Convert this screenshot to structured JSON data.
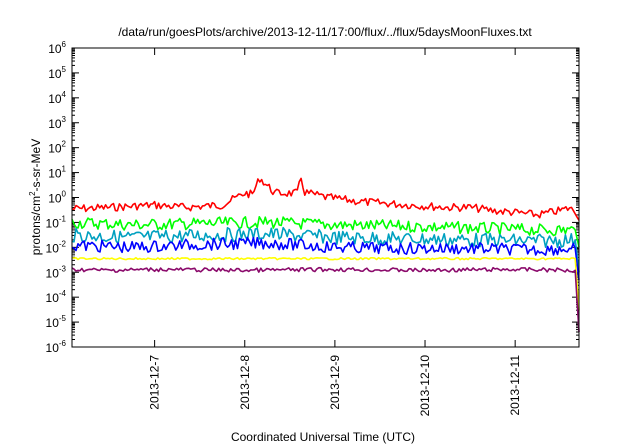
{
  "chart_data": {
    "type": "line",
    "title": "/data/run/goesPlots/archive/2013-12-11/17:00/flux/../flux/5daysMoonFluxes.txt",
    "xlabel": "Coordinated Universal Time (UTC)",
    "ylabel": {
      "base": "protons/cm",
      "sup": "2",
      "rest": "-s-sr-MeV"
    },
    "x_range_days": [
      "2013-12-06 02:00",
      "2013-12-11 17:00"
    ],
    "x_ticks": [
      {
        "label": "2013-12-7",
        "value": "2013-12-07"
      },
      {
        "label": "2013-12-8",
        "value": "2013-12-08"
      },
      {
        "label": "2013-12-9",
        "value": "2013-12-09"
      },
      {
        "label": "2013-12-10",
        "value": "2013-12-10"
      },
      {
        "label": "2013-12-11",
        "value": "2013-12-11"
      }
    ],
    "y_scale": "log",
    "ylim": [
      1e-06,
      1000000.0
    ],
    "y_ticks": [
      {
        "base": "10",
        "exp": "-6",
        "value": 1e-06
      },
      {
        "base": "10",
        "exp": "-5",
        "value": 1e-05
      },
      {
        "base": "10",
        "exp": "-4",
        "value": 0.0001
      },
      {
        "base": "10",
        "exp": "-3",
        "value": 0.001
      },
      {
        "base": "10",
        "exp": "-2",
        "value": 0.01
      },
      {
        "base": "10",
        "exp": "-1",
        "value": 0.1
      },
      {
        "base": "10",
        "exp": "0",
        "value": 1
      },
      {
        "base": "10",
        "exp": "1",
        "value": 10
      },
      {
        "base": "10",
        "exp": "2",
        "value": 100
      },
      {
        "base": "10",
        "exp": "3",
        "value": 1000
      },
      {
        "base": "10",
        "exp": "4",
        "value": 10000
      },
      {
        "base": "10",
        "exp": "5",
        "value": 100000
      },
      {
        "base": "10",
        "exp": "6",
        "value": 1000000
      }
    ],
    "grid": false,
    "legend": "none",
    "series": [
      {
        "color": "#ff0000",
        "x": [
          "2013-12-06 02:00",
          "2013-12-06 12:00",
          "2013-12-07 00:00",
          "2013-12-07 08:00",
          "2013-12-07 18:00",
          "2013-12-08 00:00",
          "2013-12-08 02:00",
          "2013-12-08 04:00",
          "2013-12-08 08:00",
          "2013-12-08 14:00",
          "2013-12-08 15:00",
          "2013-12-08 16:00",
          "2013-12-08 22:00",
          "2013-12-09 06:00",
          "2013-12-09 12:00",
          "2013-12-09 20:00",
          "2013-12-10 06:00",
          "2013-12-10 12:00",
          "2013-12-10 18:00",
          "2013-12-11 00:00",
          "2013-12-11 06:00",
          "2013-12-11 12:00",
          "2013-12-11 15:00",
          "2013-12-11 17:00"
        ],
        "y": [
          0.35,
          0.4,
          0.5,
          0.4,
          0.5,
          1.5,
          1.3,
          6,
          1.5,
          1.5,
          6,
          1.6,
          1.0,
          0.7,
          0.6,
          0.5,
          0.4,
          0.4,
          0.3,
          0.25,
          0.2,
          0.3,
          0.4,
          0.12
        ]
      },
      {
        "color": "#00ff00",
        "x": [
          "2013-12-06 02:00",
          "2013-12-06 18:00",
          "2013-12-07 12:00",
          "2013-12-08 06:00",
          "2013-12-09 00:00",
          "2013-12-09 18:00",
          "2013-12-10 12:00",
          "2013-12-11 06:00",
          "2013-12-11 16:00",
          "2013-12-11 17:00"
        ],
        "y": [
          0.1,
          0.08,
          0.09,
          0.1,
          0.08,
          0.07,
          0.06,
          0.05,
          0.05,
          0.01
        ]
      },
      {
        "color": "#00a0c0",
        "x": [
          "2013-12-06 02:00",
          "2013-12-06 18:00",
          "2013-12-07 12:00",
          "2013-12-08 06:00",
          "2013-12-09 00:00",
          "2013-12-09 18:00",
          "2013-12-10 12:00",
          "2013-12-11 06:00",
          "2013-12-11 16:00",
          "2013-12-11 17:00"
        ],
        "y": [
          0.03,
          0.025,
          0.03,
          0.035,
          0.025,
          0.022,
          0.02,
          0.018,
          0.02,
          0.001
        ]
      },
      {
        "color": "#0000ff",
        "x": [
          "2013-12-06 02:00",
          "2013-12-06 18:00",
          "2013-12-07 12:00",
          "2013-12-08 06:00",
          "2013-12-09 00:00",
          "2013-12-09 18:00",
          "2013-12-10 12:00",
          "2013-12-11 06:00",
          "2013-12-11 16:00",
          "2013-12-11 17:00"
        ],
        "y": [
          0.012,
          0.01,
          0.013,
          0.015,
          0.01,
          0.009,
          0.009,
          0.008,
          0.009,
          0.0005
        ]
      },
      {
        "color": "#ffff00",
        "x": [
          "2013-12-06 02:00",
          "2013-12-07 12:00",
          "2013-12-09 00:00",
          "2013-12-10 12:00",
          "2013-12-11 16:00",
          "2013-12-11 17:00"
        ],
        "y": [
          0.0035,
          0.0035,
          0.0035,
          0.0035,
          0.0035,
          3e-05
        ]
      },
      {
        "color": "#8b0a6b",
        "x": [
          "2013-12-06 02:00",
          "2013-12-06 12:00",
          "2013-12-07 00:00",
          "2013-12-08 00:00",
          "2013-12-09 00:00",
          "2013-12-10 00:00",
          "2013-12-11 00:00",
          "2013-12-11 16:00",
          "2013-12-11 17:00"
        ],
        "y": [
          0.0013,
          0.0012,
          0.0013,
          0.0012,
          0.0013,
          0.0012,
          0.0013,
          0.0012,
          4e-06
        ]
      }
    ]
  }
}
